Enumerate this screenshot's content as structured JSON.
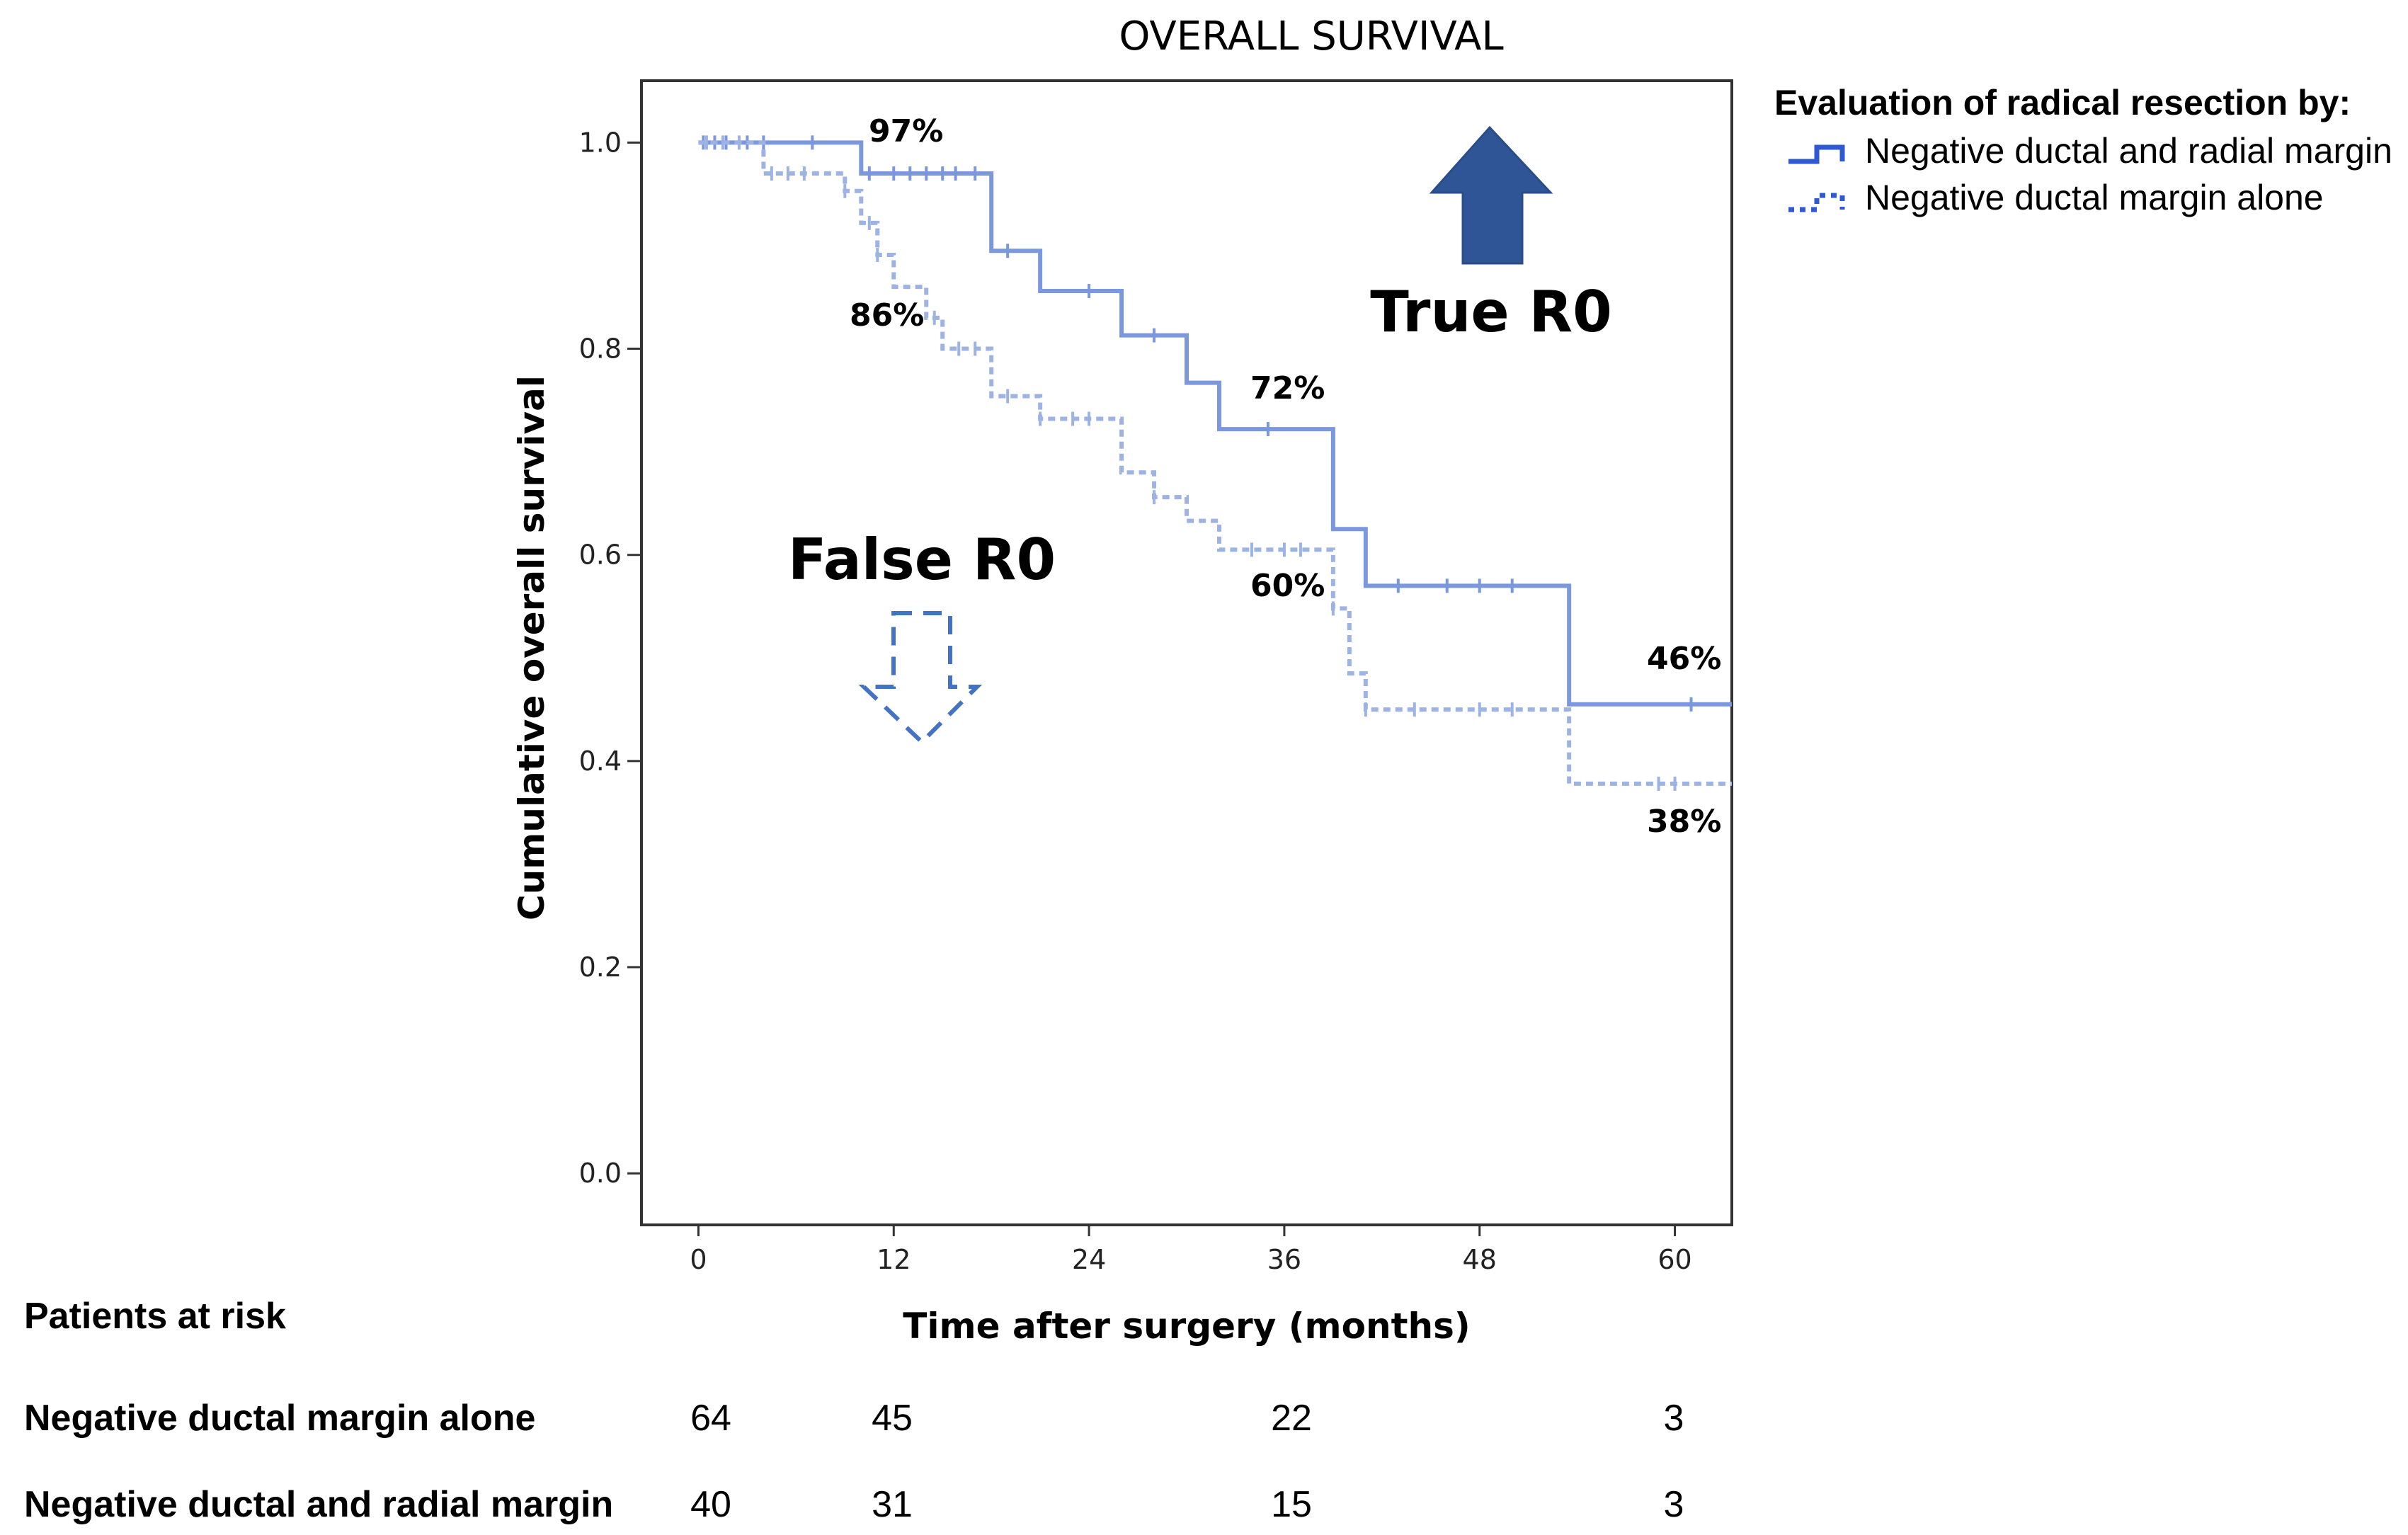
{
  "chart_data": {
    "type": "line",
    "title": "OVERALL SURVIVAL",
    "xlabel": "Time after surgery (months)",
    "ylabel": "Cumulative overall survival",
    "xlim": [
      -3.5,
      63.5
    ],
    "ylim": [
      -0.05,
      1.06
    ],
    "x_ticks": [
      0,
      12,
      24,
      36,
      48,
      60
    ],
    "x_tick_labels": [
      "0",
      "12",
      "24",
      "36",
      "48",
      "60"
    ],
    "y_ticks": [
      0.0,
      0.2,
      0.4,
      0.6,
      0.8,
      1.0
    ],
    "y_tick_labels": [
      "0.0",
      "0.2",
      "0.4",
      "0.6",
      "0.8",
      "1.0"
    ],
    "legend": {
      "title": "Evaluation of radical resection by:",
      "position": "outside-top-right"
    },
    "series": [
      {
        "name": "Negative ductal and radial margin",
        "style": "solid",
        "color": "#7b97dd",
        "steps": [
          [
            0,
            1.0
          ],
          [
            10,
            0.97
          ],
          [
            18,
            0.895
          ],
          [
            21,
            0.856
          ],
          [
            26,
            0.813
          ],
          [
            30,
            0.767
          ],
          [
            32,
            0.722
          ],
          [
            39,
            0.625
          ],
          [
            41,
            0.57
          ],
          [
            53.5,
            0.455
          ],
          [
            63.5,
            0.455
          ]
        ],
        "censored": [
          0.3,
          1,
          1.7,
          3,
          4,
          7,
          10.5,
          12,
          13,
          14,
          15,
          15.8,
          17,
          19,
          24,
          28,
          35,
          43,
          46,
          48,
          50,
          61
        ]
      },
      {
        "name": "Negative ductal margin alone",
        "style": "dotted",
        "color": "#9db3e4",
        "steps": [
          [
            0,
            1.0
          ],
          [
            4,
            0.97
          ],
          [
            9,
            0.953
          ],
          [
            10,
            0.922
          ],
          [
            11,
            0.891
          ],
          [
            12,
            0.86
          ],
          [
            14,
            0.83
          ],
          [
            15,
            0.8
          ],
          [
            18,
            0.754
          ],
          [
            21,
            0.732
          ],
          [
            26,
            0.68
          ],
          [
            28,
            0.656
          ],
          [
            30,
            0.633
          ],
          [
            32,
            0.605
          ],
          [
            39,
            0.548
          ],
          [
            40,
            0.485
          ],
          [
            41,
            0.45
          ],
          [
            53.5,
            0.378
          ],
          [
            63.5,
            0.378
          ]
        ],
        "censored": [
          0.5,
          1.5,
          2.5,
          4.5,
          5.5,
          6.5,
          9,
          10.5,
          11,
          14.5,
          16,
          17,
          19,
          21,
          23,
          24,
          28,
          34,
          36,
          37,
          39,
          41,
          44,
          48,
          50,
          59,
          60
        ]
      }
    ],
    "annotations": {
      "upper_start": "97%",
      "lower_mid": "86%",
      "upper_36": "72%",
      "lower_36": "60%",
      "upper_60": "46%",
      "lower_60": "38%",
      "true_r0": "True R0",
      "false_r0": "False R0"
    },
    "risk_table": {
      "title": "Patients at risk",
      "time_points": [
        0,
        12,
        36,
        60
      ],
      "rows": [
        {
          "label": "Negative ductal margin alone",
          "values": [
            "64",
            "45",
            "22",
            "3"
          ]
        },
        {
          "label": "Negative ductal and radial margin",
          "values": [
            "40",
            "31",
            "15",
            "3"
          ]
        }
      ]
    }
  },
  "colors": {
    "upper_line": "#7b97dd",
    "lower_line": "#9db3e4",
    "arrow_fill": "#2f5597",
    "arrow_outline": "#4472c4",
    "legend_icon": "#2e59d1"
  }
}
